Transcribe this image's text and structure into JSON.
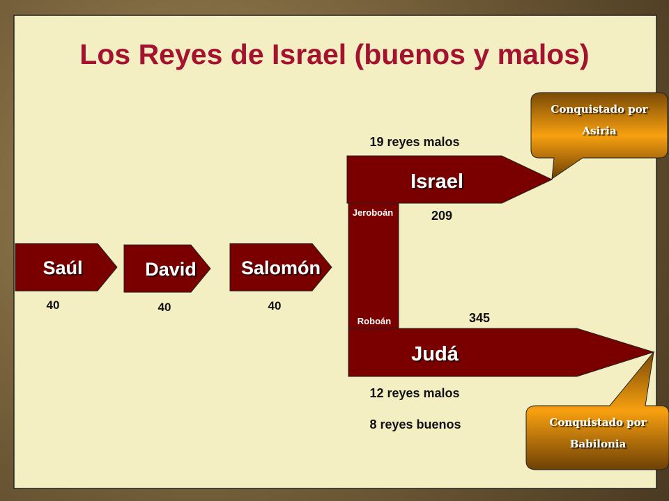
{
  "title": "Los Reyes de Israel (buenos y malos)",
  "colors": {
    "title": "#a3122e",
    "arrow": "#7a0000",
    "panel": "#f3efc3",
    "callout": "#f29a0a"
  },
  "kings": [
    {
      "name": "Saúl",
      "years": "40"
    },
    {
      "name": "David",
      "years": "40"
    },
    {
      "name": "Salomón",
      "years": "40"
    }
  ],
  "israel": {
    "label": "Israel",
    "founder": "Jeroboán",
    "years": "209",
    "summary": "19 reyes malos",
    "callout": [
      "Conquistado por",
      "Asiria"
    ]
  },
  "juda": {
    "label": "Judá",
    "founder": "Roboán",
    "years": "345",
    "summary_bad": "12 reyes malos",
    "summary_good": "8 reyes buenos",
    "callout": [
      "Conquistado por",
      "Babilonia"
    ]
  }
}
